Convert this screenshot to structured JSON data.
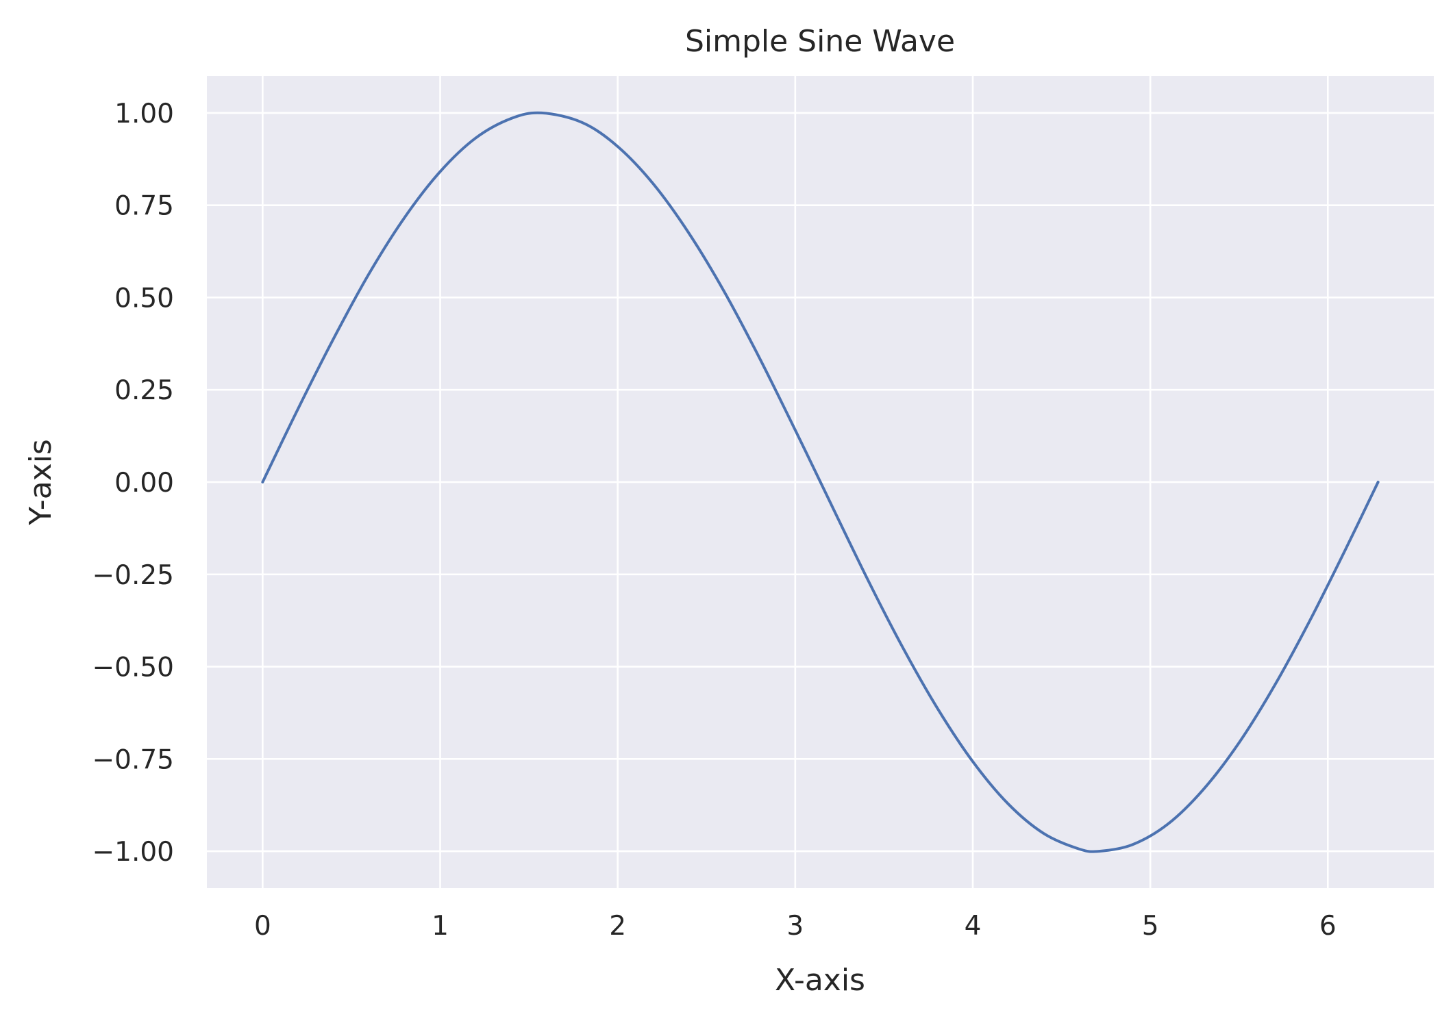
{
  "chart_data": {
    "type": "line",
    "title": "Simple Sine Wave",
    "xlabel": "X-axis",
    "ylabel": "Y-axis",
    "xlim": [
      -0.314,
      6.597
    ],
    "ylim": [
      -1.1,
      1.1
    ],
    "x_ticks": [
      0,
      1,
      2,
      3,
      4,
      5,
      6
    ],
    "x_tick_labels": [
      "0",
      "1",
      "2",
      "3",
      "4",
      "5",
      "6"
    ],
    "y_ticks": [
      1.0,
      0.75,
      0.5,
      0.25,
      0.0,
      -0.25,
      -0.5,
      -0.75,
      -1.0
    ],
    "y_tick_labels": [
      "1.00",
      "0.75",
      "0.50",
      "0.25",
      "0.00",
      "−0.25",
      "−0.50",
      "−0.75",
      "−1.00"
    ],
    "grid": true,
    "background_color": "#EAEAF2",
    "grid_color": "#FFFFFF",
    "series": [
      {
        "color": "#4C72B0",
        "x": [
          0,
          0.2,
          0.4,
          0.6,
          0.8,
          1.0,
          1.2,
          1.4,
          1.571,
          1.8,
          2.0,
          2.2,
          2.4,
          2.6,
          2.8,
          3.0,
          3.142,
          3.4,
          3.6,
          3.8,
          4.0,
          4.2,
          4.4,
          4.6,
          4.712,
          4.9,
          5.1,
          5.3,
          5.5,
          5.7,
          5.9,
          6.1,
          6.283
        ],
        "y": [
          0,
          0.199,
          0.389,
          0.565,
          0.717,
          0.841,
          0.932,
          0.985,
          1.0,
          0.974,
          0.909,
          0.808,
          0.675,
          0.516,
          0.335,
          0.141,
          0,
          -0.256,
          -0.443,
          -0.612,
          -0.757,
          -0.872,
          -0.952,
          -0.994,
          -1.0,
          -0.982,
          -0.926,
          -0.832,
          -0.706,
          -0.551,
          -0.374,
          -0.182,
          0
        ]
      }
    ]
  }
}
